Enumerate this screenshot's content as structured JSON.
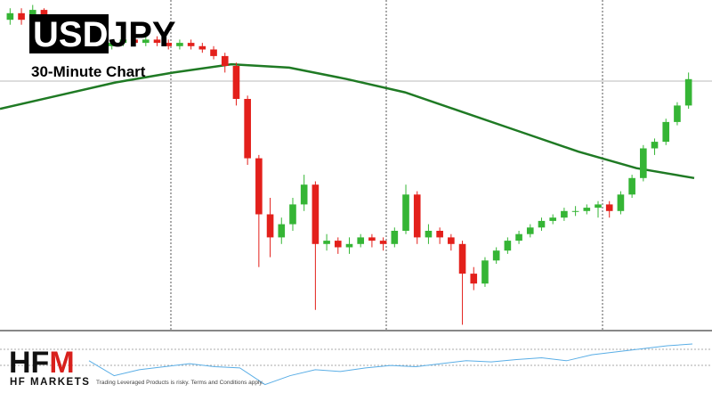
{
  "header": {
    "pair_left": "USD",
    "pair_right": "JPY",
    "subtitle": "30-Minute Chart"
  },
  "chart_data": [
    {
      "type": "candlestick",
      "up_color": "#35b535",
      "down_color": "#e3201b",
      "ylim": [
        0,
        100
      ],
      "open": [
        94,
        96,
        94,
        97,
        92,
        88,
        86,
        87,
        85,
        86,
        87,
        88,
        87,
        88,
        87,
        86,
        87,
        86,
        85,
        83,
        80,
        70,
        52,
        35,
        28,
        32,
        38,
        44,
        26,
        27,
        25,
        26,
        28,
        27,
        26,
        30,
        41,
        28,
        30,
        28,
        26,
        17,
        14,
        21,
        24,
        27,
        29,
        31,
        33,
        34,
        36,
        36,
        37,
        38,
        36,
        41,
        46,
        55,
        57,
        63,
        68
      ],
      "high": [
        97.5,
        97.5,
        98.5,
        97.5,
        93,
        89,
        88,
        88,
        87,
        88,
        89.5,
        89,
        89,
        89,
        88,
        88,
        88,
        87,
        86,
        84,
        81,
        71,
        53,
        40,
        34,
        40,
        47,
        45,
        29,
        28,
        28,
        29,
        29,
        28,
        31,
        44,
        42,
        32,
        31,
        29,
        27,
        19,
        22,
        25,
        28,
        30,
        32,
        34,
        35,
        37,
        37.5,
        38,
        39,
        39,
        42,
        47,
        56,
        58,
        64,
        69,
        78
      ],
      "low": [
        92.5,
        92.5,
        93,
        91,
        87,
        85,
        85,
        84,
        84,
        85,
        86,
        86,
        86,
        86,
        85,
        85,
        85,
        84,
        82,
        78,
        68,
        50,
        19,
        22,
        26,
        30,
        36,
        6,
        24,
        23,
        23,
        25,
        25,
        24,
        25,
        29,
        26,
        26,
        26,
        24,
        1.5,
        12,
        13,
        20,
        23,
        26,
        28,
        30,
        32,
        33,
        34.5,
        35,
        34,
        34,
        35,
        40,
        45,
        53,
        56,
        62,
        67
      ],
      "close": [
        96,
        94,
        97,
        92,
        88,
        86,
        87,
        85,
        86,
        87,
        88,
        87,
        88,
        87,
        86,
        87,
        86,
        85,
        83,
        80,
        70,
        52,
        35,
        28,
        32,
        38,
        44,
        26,
        27,
        25,
        26,
        28,
        27,
        26,
        30,
        41,
        28,
        30,
        28,
        26,
        17,
        14,
        21,
        24,
        27,
        29,
        31,
        33,
        34,
        36,
        36,
        37,
        38,
        36,
        41,
        46,
        55,
        57,
        63,
        68,
        76
      ],
      "ma": {
        "color": "#1f7a24",
        "values": [
          67,
          71,
          75,
          78,
          80.5,
          79.5,
          76,
          72,
          66,
          60,
          54,
          49,
          46
        ]
      }
    },
    {
      "type": "line",
      "color": "#5aaee6",
      "ylim": [
        0,
        100
      ],
      "values": [
        60,
        35,
        45,
        50,
        55,
        50,
        48,
        20,
        35,
        45,
        42,
        48,
        52,
        50,
        55,
        60,
        58,
        62,
        65,
        60,
        70,
        75,
        80,
        85,
        88
      ]
    }
  ],
  "footer": {
    "logo_a": "HF",
    "logo_b": "M",
    "brand": "HF MARKETS",
    "disclaimer": "Trading Leveraged Products is risky. Terms and Conditions apply."
  }
}
